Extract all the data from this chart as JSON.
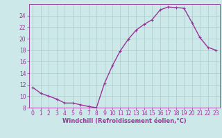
{
  "x": [
    0,
    1,
    2,
    3,
    4,
    5,
    6,
    7,
    8,
    9,
    10,
    11,
    12,
    13,
    14,
    15,
    16,
    17,
    18,
    19,
    20,
    21,
    22,
    23
  ],
  "y": [
    11.5,
    10.5,
    10.0,
    9.5,
    8.8,
    8.8,
    8.5,
    8.2,
    8.0,
    12.2,
    15.3,
    17.9,
    19.9,
    21.5,
    22.5,
    23.3,
    25.0,
    25.5,
    25.4,
    25.3,
    22.8,
    20.2,
    18.5,
    18.0
  ],
  "line_color": "#993399",
  "marker": "+",
  "marker_size": 3.5,
  "line_width": 1.0,
  "bg_color": "#cce8e8",
  "grid_color": "#aacccc",
  "axis_color": "#993399",
  "xlabel": "Windchill (Refroidissement éolien,°C)",
  "xlabel_fontsize": 6.0,
  "tick_fontsize": 5.5,
  "ylim": [
    8,
    26
  ],
  "yticks": [
    8,
    10,
    12,
    14,
    16,
    18,
    20,
    22,
    24
  ],
  "xlim": [
    -0.5,
    23.5
  ]
}
